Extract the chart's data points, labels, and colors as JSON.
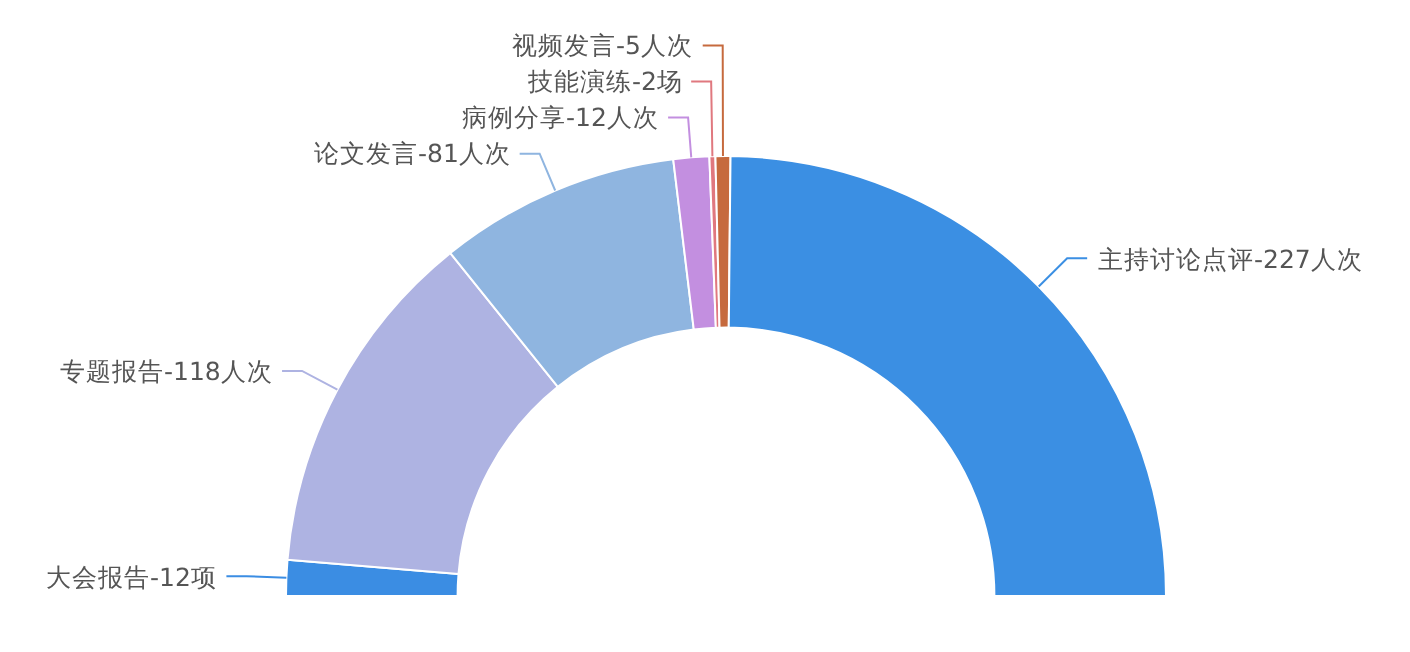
{
  "chart_data": {
    "type": "donut",
    "categories": [
      "大会报告",
      "专题报告",
      "论文发言",
      "病例分享",
      "技能演练",
      "视频发言",
      "主持讨论点评"
    ],
    "values": [
      12,
      118,
      81,
      12,
      2,
      5,
      227
    ],
    "value_labels": [
      "12项",
      "118人次",
      "81人次",
      "12人次",
      "2场",
      "5人次",
      "227人次"
    ],
    "colors": [
      "#3b8de3",
      "#aeb3e2",
      "#8fb5e0",
      "#c38fe0",
      "#e0787f",
      "#c66a3e",
      "#3b8fe3"
    ]
  }
}
